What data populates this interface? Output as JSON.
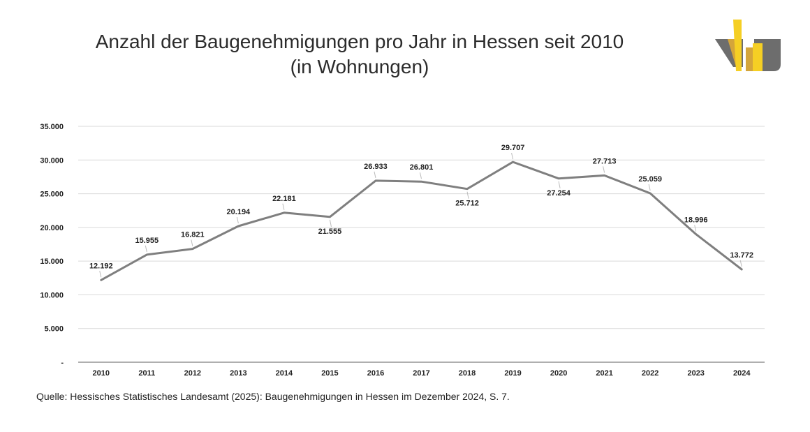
{
  "chart_data": {
    "type": "line",
    "title": "Anzahl der Baugenehmigungen pro Jahr in Hessen seit 2010",
    "subtitle": "(in Wohnungen)",
    "categories": [
      "2010",
      "2011",
      "2012",
      "2013",
      "2014",
      "2015",
      "2016",
      "2017",
      "2018",
      "2019",
      "2020",
      "2021",
      "2022",
      "2023",
      "2024"
    ],
    "series": [
      {
        "values": [
          12192,
          15955,
          16821,
          20194,
          22181,
          21555,
          26933,
          26801,
          25712,
          29707,
          27254,
          27713,
          25059,
          18996,
          13772
        ],
        "labels": [
          "12.192",
          "15.955",
          "16.821",
          "20.194",
          "22.181",
          "21.555",
          "26.933",
          "26.801",
          "25.712",
          "29.707",
          "27.254",
          "27.713",
          "25.059",
          "18.996",
          "13.772"
        ],
        "color": "#7f7f7f"
      }
    ],
    "y_ticks": [
      0,
      5000,
      10000,
      15000,
      20000,
      25000,
      30000,
      35000
    ],
    "y_tick_labels": [
      "-",
      "5.000",
      "10.000",
      "15.000",
      "20.000",
      "25.000",
      "30.000",
      "35.000"
    ],
    "ylim": [
      0,
      35000
    ],
    "grid": true,
    "legend": "none"
  },
  "source_text": "Quelle: Hessisches Statistisches Landesamt (2025): Baugenehmigungen in Hessen im Dezember 2024, S. 7.",
  "colors": {
    "line": "#7f7f7f",
    "grid": "#d9d9d9",
    "axis": "#7f7f7f",
    "logo_yellow": "#f5cf24",
    "logo_gold": "#d4a53a",
    "logo_gray": "#6d6d6d"
  }
}
